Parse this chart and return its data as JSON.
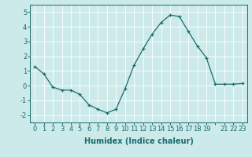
{
  "x": [
    0,
    1,
    2,
    3,
    4,
    5,
    6,
    7,
    8,
    9,
    10,
    11,
    12,
    13,
    14,
    15,
    16,
    17,
    18,
    19,
    20,
    21,
    22,
    23
  ],
  "y": [
    1.3,
    0.8,
    -0.1,
    -0.3,
    -0.3,
    -0.6,
    -1.3,
    -1.6,
    -1.85,
    -1.6,
    -0.2,
    1.4,
    2.5,
    3.5,
    4.3,
    4.8,
    4.7,
    3.7,
    2.7,
    1.9,
    0.1,
    0.1,
    0.1,
    0.15
  ],
  "line_color": "#1a6b6b",
  "marker": "+",
  "marker_size": 3,
  "bg_color": "#cceaea",
  "grid_color": "#ffffff",
  "xlabel": "Humidex (Indice chaleur)",
  "ylim": [
    -2.5,
    5.5
  ],
  "xlim": [
    -0.5,
    23.5
  ],
  "xticks": [
    0,
    1,
    2,
    3,
    4,
    5,
    6,
    7,
    8,
    9,
    10,
    11,
    12,
    13,
    14,
    15,
    16,
    17,
    18,
    19,
    20,
    21,
    22,
    23
  ],
  "xtick_labels": [
    "0",
    "1",
    "2",
    "3",
    "4",
    "5",
    "6",
    "7",
    "8",
    "9",
    "10",
    "11",
    "12",
    "13",
    "14",
    "15",
    "16",
    "17",
    "18",
    "19",
    "",
    "21",
    "22",
    "23"
  ],
  "yticks": [
    -2,
    -1,
    0,
    1,
    2,
    3,
    4,
    5
  ],
  "xlabel_fontsize": 7,
  "tick_fontsize": 6
}
